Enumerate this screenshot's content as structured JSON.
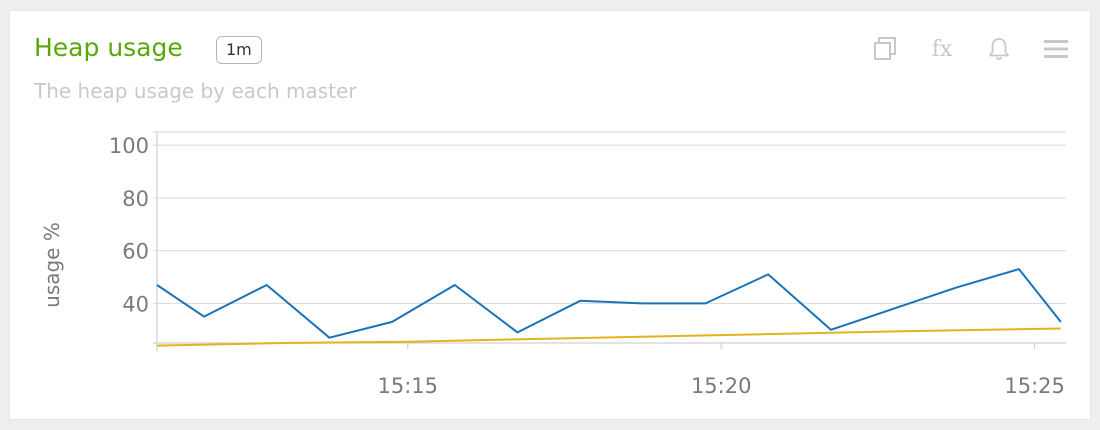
{
  "panel": {
    "title": "Heap usage",
    "badge": "1m",
    "subtitle": "The heap usage by each master",
    "tools": [
      "copy-icon",
      "fx-icon",
      "bell-icon",
      "menu-icon"
    ],
    "fx_label": "fx"
  },
  "colors": {
    "title": "#5aa70a",
    "series_blue": "#1a73b8",
    "series_yellow": "#e3b21f",
    "grid": "#dedede",
    "tick": "#7a7a7a"
  },
  "chart_data": {
    "type": "line",
    "title": "",
    "ylabel": "usage %",
    "xlabel": "",
    "ylim": [
      25,
      105
    ],
    "yticks": [
      40,
      60,
      80,
      100
    ],
    "xlim": [
      "15:11",
      "15:25:30"
    ],
    "xticks": [
      "15:15",
      "15:20",
      "15:25"
    ],
    "grid": true,
    "legend": "none",
    "series": [
      {
        "color": "#1a73b8",
        "x": [
          "15:11",
          "15:11:45",
          "15:12:45",
          "15:13:45",
          "15:14:45",
          "15:15:45",
          "15:16:45",
          "15:17:45",
          "15:18:45",
          "15:19:45",
          "15:20:45",
          "15:21:45",
          "15:22:45",
          "15:23:45",
          "15:24:45",
          "15:25:25"
        ],
        "values": [
          47,
          35,
          47,
          27,
          33,
          47,
          29,
          41,
          40,
          40,
          51,
          30,
          38,
          46,
          53,
          33
        ]
      },
      {
        "color": "#e3b21f",
        "x": [
          "15:11",
          "15:13",
          "15:15",
          "15:17",
          "15:19",
          "15:21",
          "15:23",
          "15:25:25"
        ],
        "values": [
          24,
          25,
          25.5,
          26.5,
          27.5,
          28.5,
          29.5,
          30.5
        ]
      }
    ]
  }
}
